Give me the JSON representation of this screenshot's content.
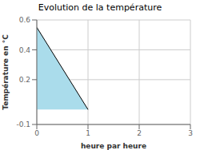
{
  "chart_data": {
    "type": "area",
    "title": "Evolution de la température",
    "xlabel": "heure par heure",
    "ylabel": "Température en °C",
    "x": [
      0,
      1
    ],
    "series": [
      {
        "type": "area",
        "color": "#aadceb",
        "values": [
          0.55,
          0.0
        ]
      },
      {
        "type": "line",
        "color": "#000000",
        "values": [
          0.55,
          0.0
        ]
      }
    ],
    "xlim": [
      0,
      3
    ],
    "ylim": [
      -0.1,
      0.6
    ],
    "xticks": [
      0,
      1,
      2,
      3
    ],
    "yticks": [
      -0.1,
      0.2,
      0.4,
      0.6
    ],
    "grid": true
  }
}
